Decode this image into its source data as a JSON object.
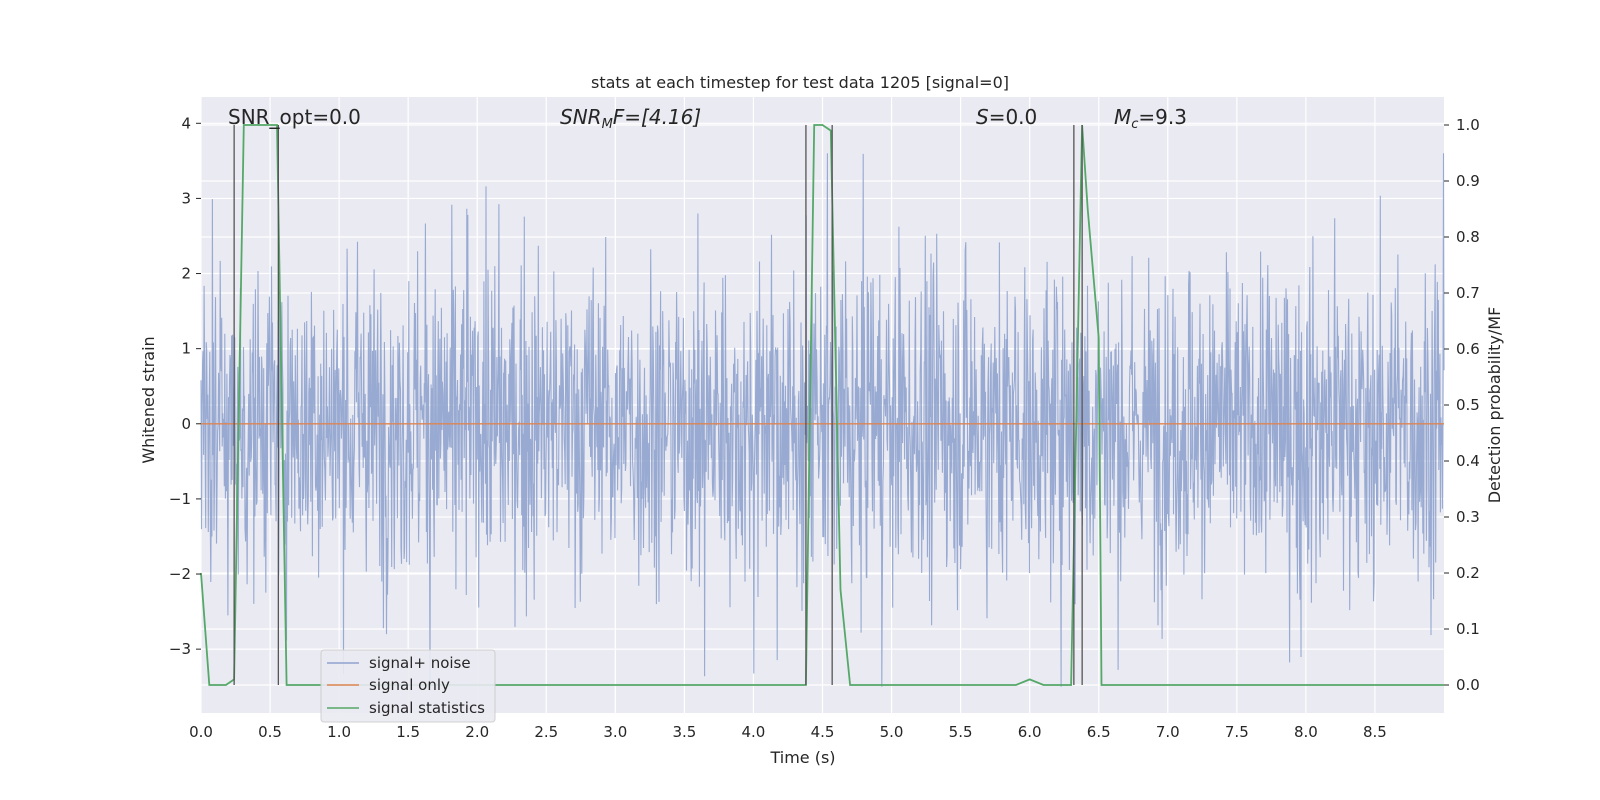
{
  "chart_data": {
    "type": "line",
    "title": "stats at each timestep for test data 1205 [signal=0]",
    "xlabel": "Time (s)",
    "ylabel_left": "Whitened strain",
    "ylabel_right": "Detection probability/MF",
    "xlim": [
      0.0,
      9.0
    ],
    "ylim_left": [
      -3.85,
      4.35
    ],
    "ylim_right": [
      -0.05,
      1.05
    ],
    "x_ticks": [
      "0.0",
      "0.5",
      "1.0",
      "1.5",
      "2.0",
      "2.5",
      "3.0",
      "3.5",
      "4.0",
      "4.5",
      "5.0",
      "5.5",
      "6.0",
      "6.5",
      "7.0",
      "7.5",
      "8.0",
      "8.5"
    ],
    "y_ticks_left": [
      "−3",
      "−2",
      "−1",
      "0",
      "1",
      "2",
      "3",
      "4"
    ],
    "y_ticks_right": [
      "0.0",
      "0.1",
      "0.2",
      "0.3",
      "0.4",
      "0.5",
      "0.6",
      "0.7",
      "0.8",
      "0.9",
      "1.0"
    ],
    "grid": true,
    "legend_position": "lower-left",
    "annotations": {
      "snr_opt": "SNR_opt=0.0",
      "snr_mf_base": "SNR",
      "snr_mf_sub": "M",
      "snr_mf_rest": "F=[4.16]",
      "s_base": "S",
      "s_rest": "=0.0",
      "mc_base": "M",
      "mc_sub": "c",
      "mc_rest": "=9.3"
    },
    "series": [
      {
        "name": "signal+ noise",
        "color": "#8fa3ce",
        "axis": "left",
        "description_values": "whitened strain noise, approx. between -3.5 and 3.6"
      },
      {
        "name": "signal only",
        "color": "#dd8452",
        "axis": "left",
        "x": [
          0.0,
          9.0
        ],
        "y": [
          0.0,
          0.0
        ]
      },
      {
        "name": "signal statistics",
        "color": "#55a868",
        "axis": "right",
        "x": [
          0.0,
          0.06,
          0.18,
          0.24,
          0.31,
          0.55,
          0.62,
          0.75,
          1.0,
          2.0,
          3.0,
          4.0,
          4.38,
          4.44,
          4.5,
          4.56,
          4.63,
          4.7,
          5.0,
          5.9,
          6.0,
          6.1,
          6.3,
          6.38,
          6.42,
          6.5,
          6.52,
          7.0,
          8.0,
          9.0
        ],
        "y": [
          0.2,
          0.0,
          0.0,
          0.01,
          1.0,
          1.0,
          0.0,
          0.0,
          0.0,
          0.0,
          0.0,
          0.0,
          0.0,
          1.0,
          1.0,
          0.99,
          0.17,
          0.0,
          0.0,
          0.0,
          0.01,
          0.0,
          0.0,
          1.0,
          0.85,
          0.62,
          0.0,
          0.0,
          0.0,
          0.0
        ]
      }
    ],
    "vertical_markers_x": [
      0.24,
      0.56,
      4.38,
      4.57,
      6.32,
      6.38
    ]
  }
}
